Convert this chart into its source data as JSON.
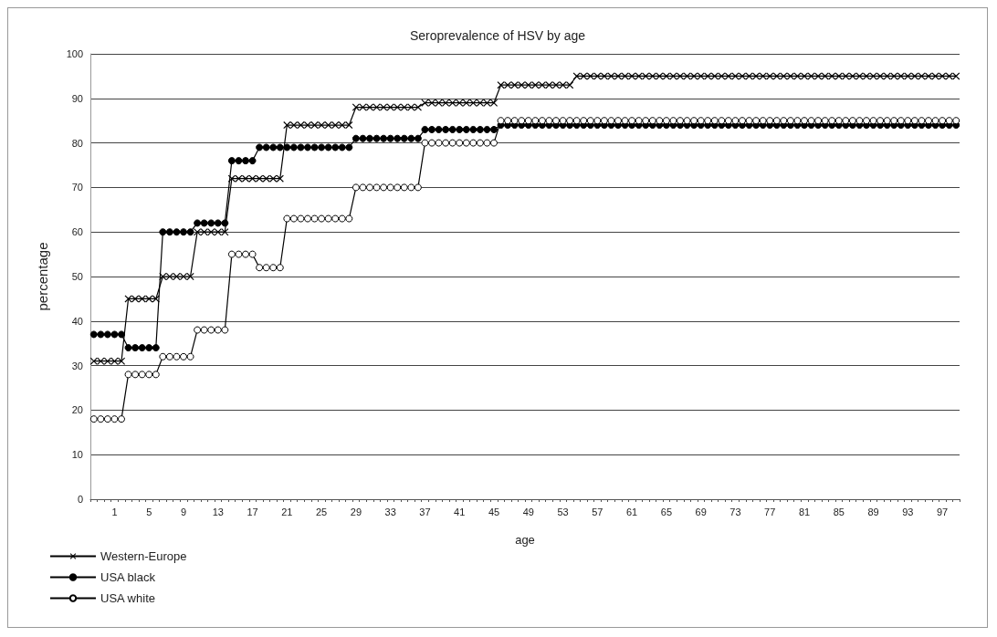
{
  "chart_data": {
    "type": "line",
    "title": "Seroprevalence of HSV by age",
    "xlabel": "age",
    "ylabel": "percentage",
    "categories": [
      null,
      null,
      null,
      "1",
      null,
      null,
      null,
      null,
      "5",
      null,
      null,
      null,
      null,
      "9",
      null,
      null,
      null,
      null,
      "13",
      null,
      null,
      null,
      null,
      "17",
      null,
      null,
      null,
      null,
      "21",
      null,
      null,
      null,
      null,
      "25",
      null,
      null,
      null,
      null,
      "29",
      null,
      null,
      null,
      null,
      "33",
      null,
      null,
      null,
      null,
      "37",
      null,
      null,
      null,
      null,
      "41",
      null,
      null,
      null,
      null,
      "45",
      null,
      null,
      null,
      null,
      "49",
      null,
      null,
      null,
      null,
      "53",
      null,
      null,
      null,
      null,
      "57",
      null,
      null,
      null,
      null,
      "61",
      null,
      null,
      null,
      null,
      "65",
      null,
      null,
      null,
      null,
      "69",
      null,
      null,
      null,
      null,
      "73",
      null,
      null,
      null,
      null,
      "77",
      null,
      null,
      null,
      null,
      "81",
      null,
      null,
      null,
      null,
      "85",
      null,
      null,
      null,
      null,
      "89",
      null,
      null,
      null,
      null,
      "93",
      null,
      null,
      null,
      null,
      "97",
      null,
      null
    ],
    "series": [
      {
        "name": "Western-Europe",
        "color": "#000000",
        "marker": "cross",
        "values": [
          31,
          31,
          31,
          31,
          31,
          45,
          45,
          45,
          45,
          45,
          50,
          50,
          50,
          50,
          50,
          60,
          60,
          60,
          60,
          60,
          72,
          72,
          72,
          72,
          72,
          72,
          72,
          72,
          84,
          84,
          84,
          84,
          84,
          84,
          84,
          84,
          84,
          84,
          88,
          88,
          88,
          88,
          88,
          88,
          88,
          88,
          88,
          88,
          89,
          89,
          89,
          89,
          89,
          89,
          89,
          89,
          89,
          89,
          89,
          93,
          93,
          93,
          93,
          93,
          93,
          93,
          93,
          93,
          93,
          93,
          95,
          95,
          95,
          95,
          95,
          95,
          95,
          95,
          95,
          95,
          95,
          95,
          95,
          95,
          95,
          95,
          95,
          95,
          95,
          95,
          95,
          95,
          95,
          95,
          95,
          95,
          95,
          95,
          95,
          95,
          95,
          95,
          95,
          95,
          95,
          95,
          95,
          95,
          95,
          95,
          95,
          95,
          95,
          95,
          95,
          95,
          95,
          95,
          95,
          95,
          95,
          95,
          95,
          95,
          95,
          95
        ]
      },
      {
        "name": "USA black",
        "color": "#000000",
        "marker": "circle",
        "values": [
          37,
          37,
          37,
          37,
          37,
          34,
          34,
          34,
          34,
          34,
          60,
          60,
          60,
          60,
          60,
          62,
          62,
          62,
          62,
          62,
          76,
          76,
          76,
          76,
          79,
          79,
          79,
          79,
          79,
          79,
          79,
          79,
          79,
          79,
          79,
          79,
          79,
          79,
          81,
          81,
          81,
          81,
          81,
          81,
          81,
          81,
          81,
          81,
          83,
          83,
          83,
          83,
          83,
          83,
          83,
          83,
          83,
          83,
          83,
          84,
          84,
          84,
          84,
          84,
          84,
          84,
          84,
          84,
          84,
          84,
          84,
          84,
          84,
          84,
          84,
          84,
          84,
          84,
          84,
          84,
          84,
          84,
          84,
          84,
          84,
          84,
          84,
          84,
          84,
          84,
          84,
          84,
          84,
          84,
          84,
          84,
          84,
          84,
          84,
          84,
          84,
          84,
          84,
          84,
          84,
          84,
          84,
          84,
          84,
          84,
          84,
          84,
          84,
          84,
          84,
          84,
          84,
          84,
          84,
          84,
          84,
          84,
          84,
          84,
          84,
          84
        ]
      },
      {
        "name": "USA white",
        "color": "#ffffff",
        "marker": "circle",
        "values": [
          18,
          18,
          18,
          18,
          18,
          28,
          28,
          28,
          28,
          28,
          32,
          32,
          32,
          32,
          32,
          38,
          38,
          38,
          38,
          38,
          55,
          55,
          55,
          55,
          52,
          52,
          52,
          52,
          63,
          63,
          63,
          63,
          63,
          63,
          63,
          63,
          63,
          63,
          70,
          70,
          70,
          70,
          70,
          70,
          70,
          70,
          70,
          70,
          80,
          80,
          80,
          80,
          80,
          80,
          80,
          80,
          80,
          80,
          80,
          85,
          85,
          85,
          85,
          85,
          85,
          85,
          85,
          85,
          85,
          85,
          85,
          85,
          85,
          85,
          85,
          85,
          85,
          85,
          85,
          85,
          85,
          85,
          85,
          85,
          85,
          85,
          85,
          85,
          85,
          85,
          85,
          85,
          85,
          85,
          85,
          85,
          85,
          85,
          85,
          85,
          85,
          85,
          85,
          85,
          85,
          85,
          85,
          85,
          85,
          85,
          85,
          85,
          85,
          85,
          85,
          85,
          85,
          85,
          85,
          85,
          85,
          85,
          85,
          85,
          85,
          85
        ]
      }
    ],
    "ylim": [
      0,
      100
    ],
    "yticks": [
      0,
      10,
      20,
      30,
      40,
      50,
      60,
      70,
      80,
      90,
      100
    ],
    "grid": "y",
    "legend": "bottom left"
  }
}
